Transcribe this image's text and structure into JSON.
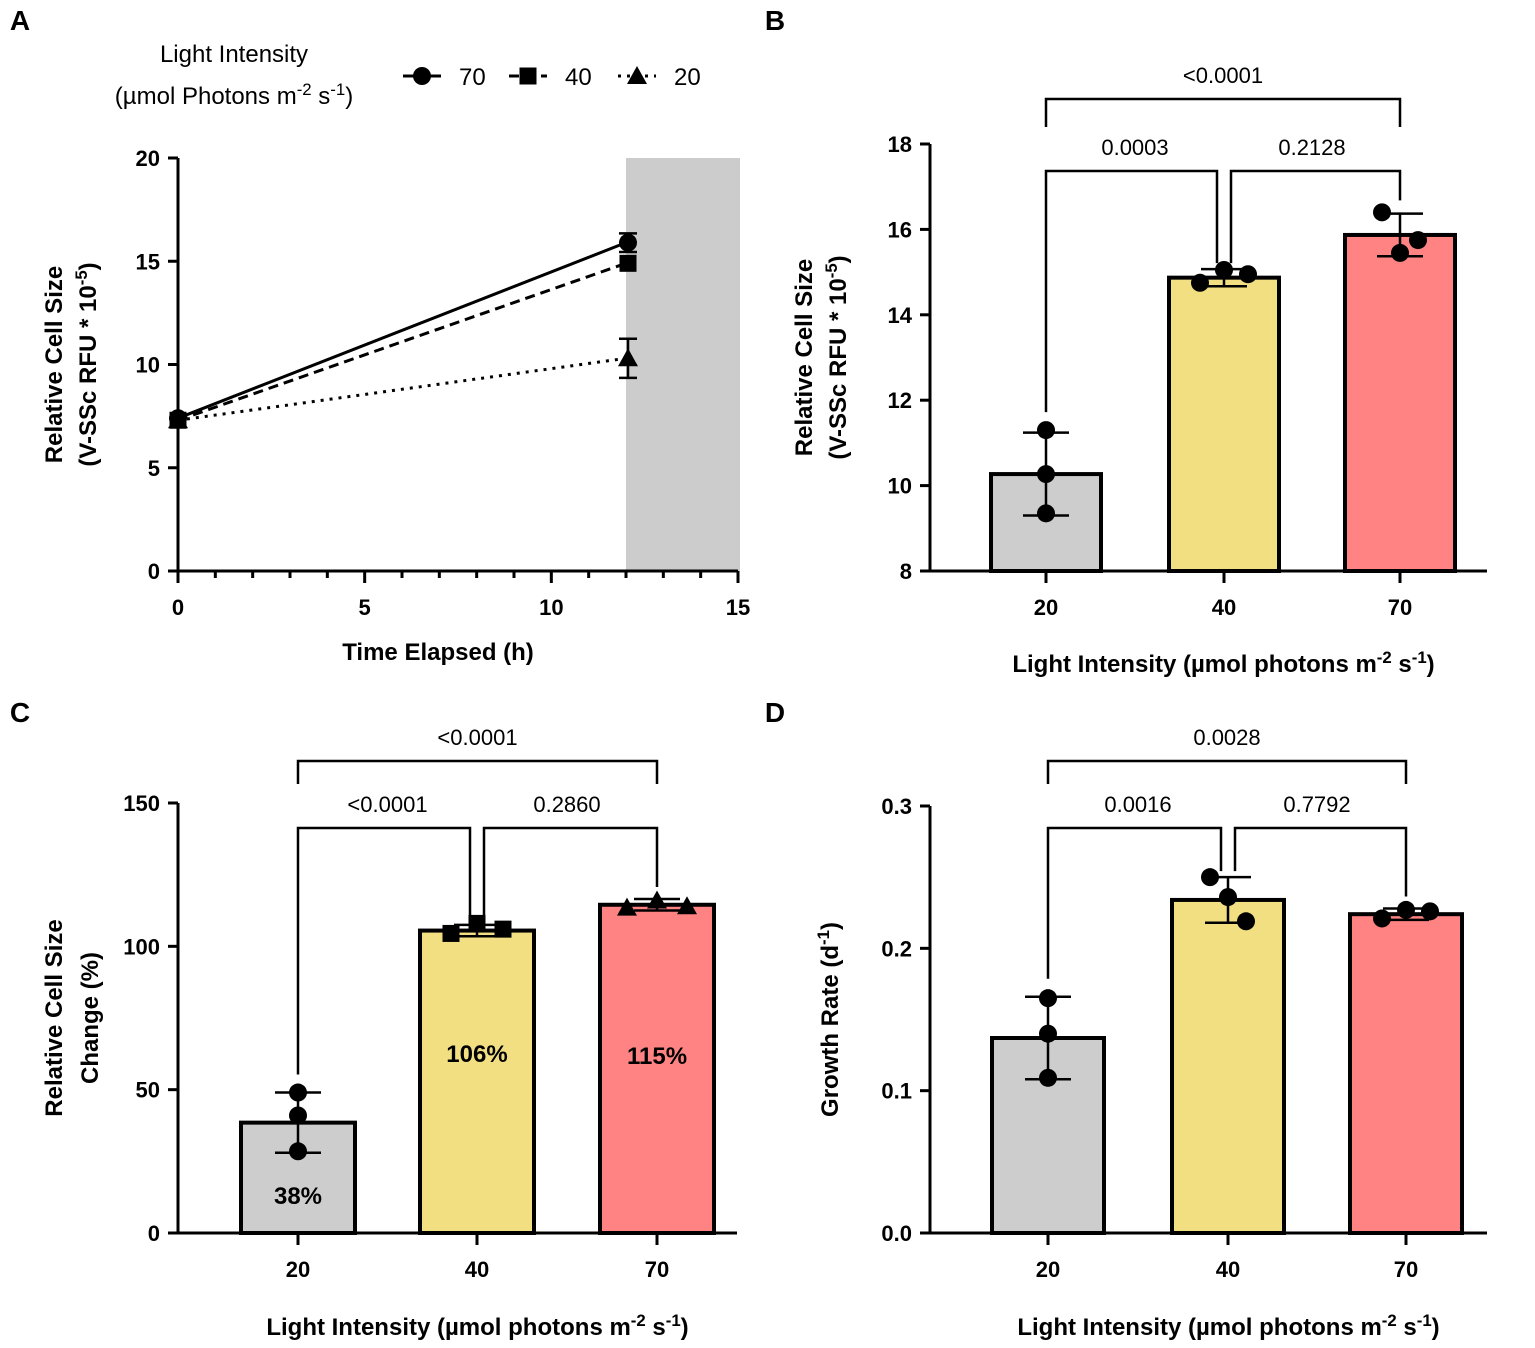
{
  "chart_data": [
    {
      "panel": "A",
      "type": "line",
      "legend_title": "Light Intensity",
      "legend_units": "(µmol Photons m-2 s-1)",
      "xlabel": "Time Elapsed (h)",
      "ylabel_line1": "Relative Cell Size",
      "ylabel_line2": "(V-SSc RFU * 10-5)",
      "xlim": [
        0,
        15
      ],
      "ylim": [
        0,
        20
      ],
      "xticks": [
        0,
        5,
        10,
        15
      ],
      "yticks": [
        0,
        5,
        10,
        15,
        20
      ],
      "shaded_region": [
        12,
        15
      ],
      "series": [
        {
          "name": "70",
          "marker": "circle",
          "style": "solid",
          "x": [
            0,
            12
          ],
          "y": [
            7.4,
            15.9
          ],
          "err": [
            0.2,
            0.45
          ]
        },
        {
          "name": "40",
          "marker": "square",
          "style": "dashed",
          "x": [
            0,
            12
          ],
          "y": [
            7.3,
            14.9
          ],
          "err": [
            0.2,
            0.2
          ]
        },
        {
          "name": "20",
          "marker": "triangle",
          "style": "dotted",
          "x": [
            0,
            12
          ],
          "y": [
            7.3,
            10.3
          ],
          "err": [
            0.2,
            0.95
          ]
        }
      ]
    },
    {
      "panel": "B",
      "type": "bar",
      "categories": [
        "20",
        "40",
        "70"
      ],
      "values": [
        10.27,
        14.87,
        15.87
      ],
      "errors": [
        0.97,
        0.2,
        0.5
      ],
      "points": [
        [
          11.3,
          10.27,
          9.35
        ],
        [
          14.75,
          15.05,
          14.95
        ],
        [
          16.4,
          15.45,
          15.75
        ]
      ],
      "colors": [
        "#cdcdcd",
        "#f1df82",
        "#ff8383"
      ],
      "xlabel": "Light Intensity (µmol photons m-2 s-1)",
      "ylabel_line1": "Relative Cell Size",
      "ylabel_line2": "(V-SSc RFU * 10-5)",
      "ylim": [
        8,
        18
      ],
      "yticks": [
        8,
        10,
        12,
        14,
        16,
        18
      ],
      "comparisons": [
        {
          "a": 0,
          "b": 1,
          "label": "0.0003"
        },
        {
          "a": 1,
          "b": 2,
          "label": "0.2128"
        },
        {
          "a": 0,
          "b": 2,
          "label": "<0.0001"
        }
      ]
    },
    {
      "panel": "C",
      "type": "bar",
      "categories": [
        "20",
        "40",
        "70"
      ],
      "values": [
        38.5,
        105.5,
        114.5
      ],
      "errors": [
        10.5,
        2.0,
        2.0
      ],
      "points": [
        [
          49,
          41,
          28.5
        ],
        [
          104.5,
          108,
          106
        ],
        [
          113.5,
          116,
          114
        ]
      ],
      "bar_labels": [
        "38%",
        "106%",
        "115%"
      ],
      "colors": [
        "#cdcdcd",
        "#f1df82",
        "#ff8383"
      ],
      "xlabel": "Light Intensity (µmol photons m-2 s-1)",
      "ylabel_line1": "Relative Cell Size",
      "ylabel_line2": "Change (%)",
      "ylim": [
        0,
        150
      ],
      "yticks": [
        0,
        50,
        100,
        150
      ],
      "comparisons": [
        {
          "a": 0,
          "b": 1,
          "label": "<0.0001"
        },
        {
          "a": 1,
          "b": 2,
          "label": "0.2860"
        },
        {
          "a": 0,
          "b": 2,
          "label": "<0.0001"
        }
      ]
    },
    {
      "panel": "D",
      "type": "bar",
      "categories": [
        "20",
        "40",
        "70"
      ],
      "values": [
        0.137,
        0.234,
        0.224
      ],
      "errors": [
        0.029,
        0.016,
        0.004
      ],
      "points": [
        [
          0.165,
          0.14,
          0.109
        ],
        [
          0.25,
          0.236,
          0.219
        ],
        [
          0.221,
          0.227,
          0.226
        ]
      ],
      "colors": [
        "#cdcdcd",
        "#f1df82",
        "#ff8383"
      ],
      "xlabel": "Light Intensity (µmol photons m-2 s-1)",
      "ylabel": "Growth Rate (d-1)",
      "ylim": [
        0.0,
        0.3
      ],
      "yticks": [
        "0.0",
        "0.1",
        "0.2",
        "0.3"
      ],
      "comparisons": [
        {
          "a": 0,
          "b": 1,
          "label": "0.0016"
        },
        {
          "a": 1,
          "b": 2,
          "label": "0.7792"
        },
        {
          "a": 0,
          "b": 2,
          "label": "0.0028"
        }
      ]
    }
  ]
}
